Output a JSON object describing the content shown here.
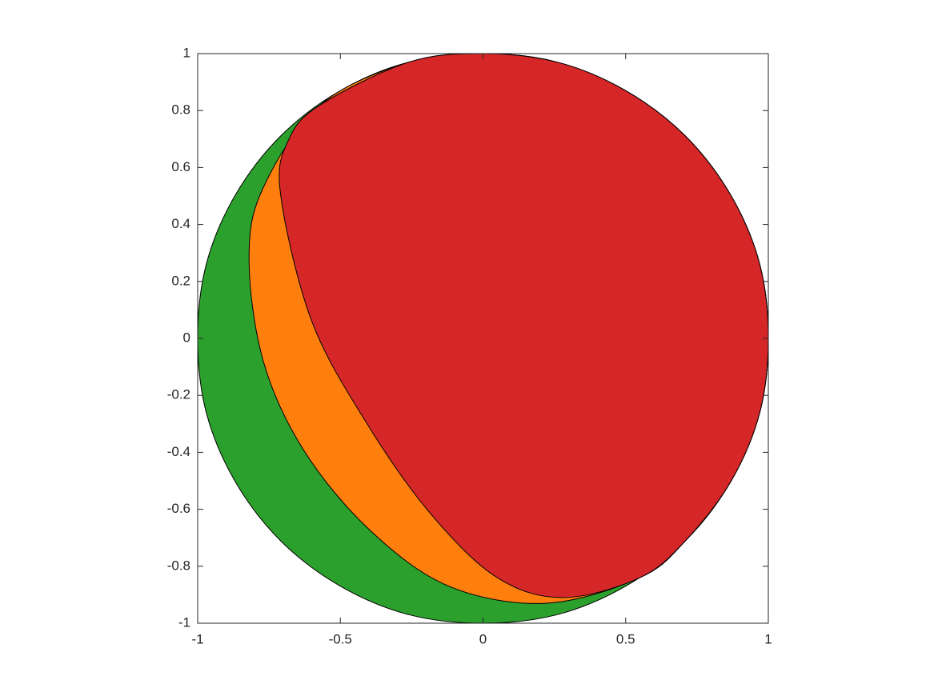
{
  "chart_data": {
    "type": "patch",
    "xlim": [
      -1,
      1
    ],
    "ylim": [
      -1,
      1
    ],
    "xticks": [
      -1,
      -0.5,
      0,
      0.5,
      1
    ],
    "yticks": [
      -1,
      -0.8,
      -0.6,
      -0.4,
      -0.2,
      0,
      0.2,
      0.4,
      0.6,
      0.8,
      1
    ],
    "edge_color": "#000000",
    "series": [
      {
        "color": "#2ca02c",
        "x": [
          1,
          0.97,
          0.87,
          0.71,
          0.5,
          0.26,
          0,
          -0.26,
          -0.5,
          -0.71,
          -0.87,
          -0.97,
          -1,
          -0.97,
          -0.87,
          -0.71,
          -0.5,
          -0.26,
          0,
          0.26,
          0.5,
          0.71,
          0.87,
          0.97
        ],
        "y": [
          0,
          0.26,
          0.5,
          0.71,
          0.87,
          0.97,
          1,
          0.97,
          0.87,
          0.71,
          0.5,
          0.26,
          0,
          -0.26,
          -0.5,
          -0.71,
          -0.87,
          -0.97,
          -1,
          -0.97,
          -0.87,
          -0.71,
          -0.5,
          -0.26
        ]
      },
      {
        "color": "#ff7f0e",
        "x": [
          -0.57,
          -0.77,
          -0.82,
          -0.77,
          -0.63,
          -0.4,
          -0.12,
          0.22,
          0.55,
          0.71,
          0.87,
          0.97,
          1,
          0.97,
          0.87,
          0.71,
          0.5,
          0.26,
          0,
          -0.26
        ],
        "y": [
          0.82,
          0.53,
          0.28,
          -0.08,
          -0.39,
          -0.67,
          -0.87,
          -0.93,
          -0.84,
          -0.71,
          -0.5,
          -0.26,
          0,
          0.26,
          0.5,
          0.71,
          0.87,
          0.97,
          1,
          0.97
        ]
      },
      {
        "color": "#d62728",
        "x": [
          -0.57,
          -0.68,
          -0.71,
          -0.6,
          -0.4,
          -0.18,
          0.05,
          0.28,
          0.55,
          0.71,
          0.87,
          0.97,
          1,
          0.97,
          0.87,
          0.71,
          0.5,
          0.26,
          0,
          -0.26
        ],
        "y": [
          0.82,
          0.7,
          0.51,
          0.06,
          -0.31,
          -0.62,
          -0.84,
          -0.91,
          -0.84,
          -0.71,
          -0.5,
          -0.26,
          0,
          0.26,
          0.5,
          0.71,
          0.87,
          0.97,
          1,
          0.97
        ]
      }
    ]
  }
}
